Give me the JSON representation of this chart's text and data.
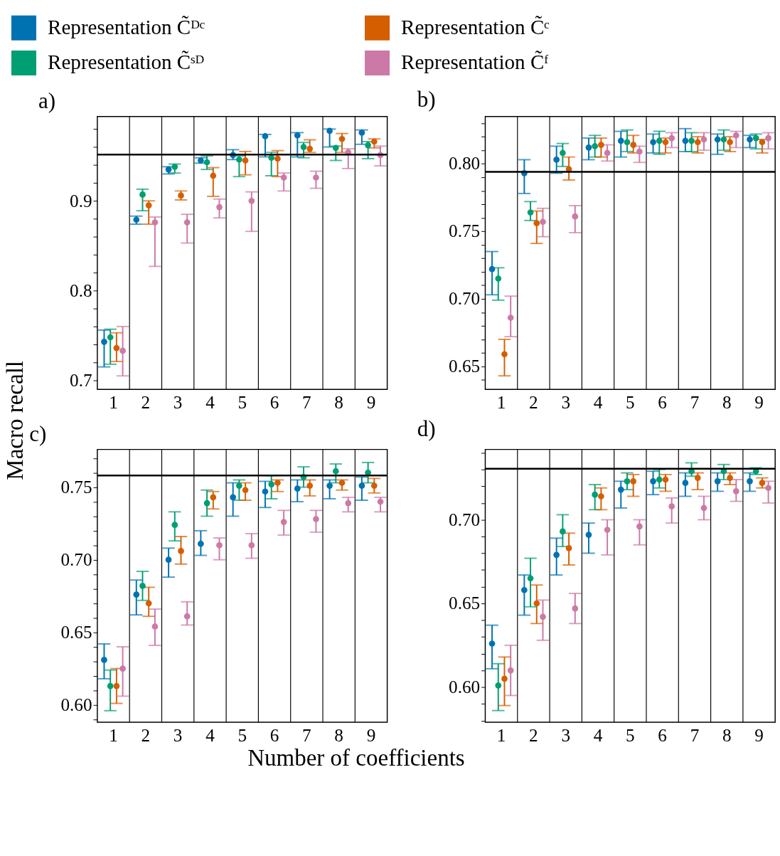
{
  "chart_data": [
    {
      "type": "scatter",
      "title": "a)",
      "categories": [
        "1",
        "2",
        "3",
        "4",
        "5",
        "6",
        "7",
        "8",
        "9"
      ],
      "ylabel": "Macro recall",
      "legend": "top",
      "grid": "x",
      "marker": "circle",
      "ylim": [
        0.69,
        0.994
      ],
      "yticks": [
        0.7,
        {
          "value": 0.72,
          "label": null
        },
        {
          "value": 0.74,
          "label": null
        },
        {
          "value": 0.76,
          "label": null
        },
        {
          "value": 0.78,
          "label": null
        },
        0.8,
        {
          "value": 0.82,
          "label": null
        },
        {
          "value": 0.84,
          "label": null
        },
        {
          "value": 0.86,
          "label": null
        },
        {
          "value": 0.88,
          "label": null
        },
        0.9,
        {
          "value": 0.92,
          "label": null
        },
        {
          "value": 0.94,
          "label": null
        },
        {
          "value": 0.96,
          "label": null
        },
        {
          "value": 0.98,
          "label": null
        }
      ],
      "ref_lines": [
        {
          "axis": "y",
          "value": 0.9516,
          "color": "#000000"
        }
      ],
      "series": [
        {
          "name": "Representation C̃ᴰᶜ",
          "color": "#0072b2",
          "values": [
            0.743,
            0.879,
            0.935,
            0.945,
            0.951,
            0.972,
            0.973,
            0.978,
            0.976
          ],
          "errors": [
            [
              0.715,
              0.756
            ],
            [
              0.874,
              0.883
            ],
            [
              0.93,
              0.938
            ],
            [
              0.942,
              0.948
            ],
            [
              0.946,
              0.957
            ],
            [
              0.949,
              0.974
            ],
            [
              0.949,
              0.976
            ],
            [
              0.96,
              0.98
            ],
            [
              0.963,
              0.979
            ]
          ]
        },
        {
          "name": "Representation C̃ˢᴰ",
          "color": "#009e73",
          "values": [
            0.748,
            0.907,
            0.938,
            0.943,
            0.946,
            0.948,
            0.96,
            0.959,
            0.962
          ],
          "errors": [
            [
              0.718,
              0.757
            ],
            [
              0.889,
              0.913
            ],
            [
              0.931,
              0.941
            ],
            [
              0.935,
              0.95
            ],
            [
              0.927,
              0.95
            ],
            [
              0.928,
              0.954
            ],
            [
              0.948,
              0.965
            ],
            [
              0.945,
              0.961
            ],
            [
              0.947,
              0.966
            ]
          ]
        },
        {
          "name": "Representation C̃ᶜ",
          "color": "#d55e00",
          "values": [
            0.736,
            0.895,
            0.906,
            0.928,
            0.945,
            0.947,
            0.958,
            0.969,
            0.966
          ],
          "errors": [
            [
              0.721,
              0.753
            ],
            [
              0.874,
              0.9
            ],
            [
              0.901,
              0.911
            ],
            [
              0.905,
              0.937
            ],
            [
              0.929,
              0.955
            ],
            [
              0.927,
              0.956
            ],
            [
              0.954,
              0.968
            ],
            [
              0.954,
              0.975
            ],
            [
              0.959,
              0.969
            ]
          ]
        },
        {
          "name": "Representation C̃ᶠ",
          "color": "#cc79a7",
          "values": [
            0.733,
            0.876,
            0.876,
            0.893,
            0.9,
            0.926,
            0.926,
            0.954,
            0.951
          ],
          "errors": [
            [
              0.705,
              0.76
            ],
            [
              0.827,
              0.882
            ],
            [
              0.853,
              0.885
            ],
            [
              0.881,
              0.902
            ],
            [
              0.866,
              0.91
            ],
            [
              0.911,
              0.931
            ],
            [
              0.914,
              0.933
            ],
            [
              0.936,
              0.958
            ],
            [
              0.939,
              0.961
            ]
          ]
        }
      ]
    },
    {
      "type": "scatter",
      "title": "b)",
      "categories": [
        "1",
        "2",
        "3",
        "4",
        "5",
        "6",
        "7",
        "8",
        "9"
      ],
      "grid": "x",
      "marker": "circle",
      "ylim": [
        0.633,
        0.835
      ],
      "yticks": [
        {
          "value": 0.64,
          "label": null
        },
        0.65,
        {
          "value": 0.66,
          "label": null
        },
        {
          "value": 0.67,
          "label": null
        },
        {
          "value": 0.68,
          "label": null
        },
        {
          "value": 0.69,
          "label": null
        },
        {
          "value": 0.7,
          "label": "0.70"
        },
        {
          "value": 0.71,
          "label": null
        },
        {
          "value": 0.72,
          "label": null
        },
        {
          "value": 0.73,
          "label": null
        },
        {
          "value": 0.74,
          "label": null
        },
        0.75,
        {
          "value": 0.76,
          "label": null
        },
        {
          "value": 0.77,
          "label": null
        },
        {
          "value": 0.78,
          "label": null
        },
        {
          "value": 0.79,
          "label": null
        },
        {
          "value": 0.8,
          "label": "0.80"
        },
        {
          "value": 0.81,
          "label": null
        },
        {
          "value": 0.82,
          "label": null
        },
        {
          "value": 0.83,
          "label": null
        }
      ],
      "ref_lines": [
        {
          "axis": "y",
          "value": 0.794,
          "color": "#000000"
        }
      ],
      "series": [
        {
          "color": "#0072b2",
          "values": [
            0.722,
            0.793,
            0.803,
            0.812,
            0.817,
            0.816,
            0.817,
            0.818,
            0.818
          ],
          "errors": [
            [
              0.703,
              0.735
            ],
            [
              0.778,
              0.803
            ],
            [
              0.793,
              0.813
            ],
            [
              0.803,
              0.819
            ],
            [
              0.805,
              0.824
            ],
            [
              0.808,
              0.822
            ],
            [
              0.809,
              0.826
            ],
            [
              0.807,
              0.822
            ],
            [
              0.812,
              0.821
            ]
          ]
        },
        {
          "color": "#009e73",
          "values": [
            0.715,
            0.764,
            0.808,
            0.813,
            0.816,
            0.817,
            0.817,
            0.818,
            0.819
          ],
          "errors": [
            [
              0.699,
              0.723
            ],
            [
              0.758,
              0.772
            ],
            [
              0.798,
              0.815
            ],
            [
              0.805,
              0.821
            ],
            [
              0.809,
              0.825
            ],
            [
              0.807,
              0.824
            ],
            [
              0.809,
              0.823
            ],
            [
              0.81,
              0.825
            ],
            [
              0.811,
              0.822
            ]
          ]
        },
        {
          "color": "#d55e00",
          "values": [
            0.659,
            0.756,
            0.796,
            0.814,
            0.814,
            0.816,
            0.816,
            0.816,
            0.816
          ],
          "errors": [
            [
              0.643,
              0.67
            ],
            [
              0.741,
              0.765
            ],
            [
              0.788,
              0.805
            ],
            [
              0.805,
              0.819
            ],
            [
              0.808,
              0.821
            ],
            [
              0.808,
              0.819
            ],
            [
              0.808,
              0.82
            ],
            [
              0.809,
              0.82
            ],
            [
              0.808,
              0.818
            ]
          ]
        },
        {
          "color": "#cc79a7",
          "values": [
            0.686,
            0.757,
            0.761,
            0.808,
            0.809,
            0.819,
            0.818,
            0.821,
            0.819
          ],
          "errors": [
            [
              0.672,
              0.702
            ],
            [
              0.746,
              0.767
            ],
            [
              0.749,
              0.769
            ],
            [
              0.802,
              0.814
            ],
            [
              0.801,
              0.813
            ],
            [
              0.812,
              0.823
            ],
            [
              0.81,
              0.823
            ],
            [
              0.812,
              0.824
            ],
            [
              0.811,
              0.823
            ]
          ]
        }
      ]
    },
    {
      "type": "scatter",
      "title": "c)",
      "categories": [
        "1",
        "2",
        "3",
        "4",
        "5",
        "6",
        "7",
        "8",
        "9"
      ],
      "xlabel": "Number of coefficients",
      "grid": "x",
      "marker": "circle",
      "ylim": [
        0.588,
        0.776
      ],
      "yticks": [
        {
          "value": 0.59,
          "label": null
        },
        {
          "value": 0.6,
          "label": "0.60"
        },
        {
          "value": 0.61,
          "label": null
        },
        {
          "value": 0.62,
          "label": null
        },
        {
          "value": 0.63,
          "label": null
        },
        {
          "value": 0.64,
          "label": null
        },
        0.65,
        {
          "value": 0.66,
          "label": null
        },
        {
          "value": 0.67,
          "label": null
        },
        {
          "value": 0.68,
          "label": null
        },
        {
          "value": 0.69,
          "label": null
        },
        {
          "value": 0.7,
          "label": "0.70"
        },
        {
          "value": 0.71,
          "label": null
        },
        {
          "value": 0.72,
          "label": null
        },
        {
          "value": 0.73,
          "label": null
        },
        {
          "value": 0.74,
          "label": null
        },
        0.75,
        {
          "value": 0.76,
          "label": null
        },
        {
          "value": 0.77,
          "label": null
        }
      ],
      "ref_lines": [
        {
          "axis": "y",
          "value": 0.758,
          "color": "#000000"
        }
      ],
      "series": [
        {
          "color": "#0072b2",
          "values": [
            0.631,
            0.676,
            0.7,
            0.711,
            0.743,
            0.747,
            0.749,
            0.751,
            0.751
          ],
          "errors": [
            [
              0.618,
              0.642
            ],
            [
              0.662,
              0.686
            ],
            [
              0.688,
              0.708
            ],
            [
              0.703,
              0.72
            ],
            [
              0.73,
              0.753
            ],
            [
              0.736,
              0.754
            ],
            [
              0.74,
              0.755
            ],
            [
              0.742,
              0.755
            ],
            [
              0.741,
              0.757
            ]
          ]
        },
        {
          "color": "#009e73",
          "values": [
            0.613,
            0.682,
            0.724,
            0.739,
            0.751,
            0.752,
            0.757,
            0.761,
            0.76
          ],
          "errors": [
            [
              0.596,
              0.624
            ],
            [
              0.672,
              0.692
            ],
            [
              0.713,
              0.733
            ],
            [
              0.73,
              0.748
            ],
            [
              0.741,
              0.755
            ],
            [
              0.742,
              0.758
            ],
            [
              0.75,
              0.764
            ],
            [
              0.753,
              0.766
            ],
            [
              0.753,
              0.767
            ]
          ]
        },
        {
          "color": "#d55e00",
          "values": [
            0.613,
            0.67,
            0.706,
            0.743,
            0.748,
            0.753,
            0.751,
            0.753,
            0.751
          ],
          "errors": [
            [
              0.601,
              0.625
            ],
            [
              0.661,
              0.681
            ],
            [
              0.697,
              0.716
            ],
            [
              0.735,
              0.747
            ],
            [
              0.741,
              0.753
            ],
            [
              0.747,
              0.755
            ],
            [
              0.744,
              0.755
            ],
            [
              0.748,
              0.755
            ],
            [
              0.746,
              0.756
            ]
          ]
        },
        {
          "color": "#cc79a7",
          "values": [
            0.625,
            0.654,
            0.661,
            0.71,
            0.71,
            0.726,
            0.728,
            0.739,
            0.74
          ],
          "errors": [
            [
              0.606,
              0.64
            ],
            [
              0.641,
              0.666
            ],
            [
              0.655,
              0.671
            ],
            [
              0.7,
              0.715
            ],
            [
              0.701,
              0.718
            ],
            [
              0.717,
              0.734
            ],
            [
              0.719,
              0.734
            ],
            [
              0.733,
              0.743
            ],
            [
              0.733,
              0.743
            ]
          ]
        }
      ]
    },
    {
      "type": "scatter",
      "title": "d)",
      "categories": [
        "1",
        "2",
        "3",
        "4",
        "5",
        "6",
        "7",
        "8",
        "9"
      ],
      "grid": "x",
      "marker": "circle",
      "ylim": [
        0.579,
        0.742
      ],
      "yticks": [
        {
          "value": 0.58,
          "label": null
        },
        {
          "value": 0.59,
          "label": null
        },
        {
          "value": 0.6,
          "label": "0.60"
        },
        {
          "value": 0.61,
          "label": null
        },
        {
          "value": 0.62,
          "label": null
        },
        {
          "value": 0.63,
          "label": null
        },
        {
          "value": 0.64,
          "label": null
        },
        0.65,
        {
          "value": 0.66,
          "label": null
        },
        {
          "value": 0.67,
          "label": null
        },
        {
          "value": 0.68,
          "label": null
        },
        {
          "value": 0.69,
          "label": null
        },
        {
          "value": 0.7,
          "label": "0.70"
        },
        {
          "value": 0.71,
          "label": null
        },
        {
          "value": 0.72,
          "label": null
        },
        {
          "value": 0.73,
          "label": null
        },
        {
          "value": 0.74,
          "label": null
        }
      ],
      "ref_lines": [
        {
          "axis": "y",
          "value": 0.7305,
          "color": "#000000"
        }
      ],
      "series": [
        {
          "color": "#0072b2",
          "values": [
            0.626,
            0.658,
            0.679,
            0.691,
            0.718,
            0.723,
            0.722,
            0.723,
            0.723
          ],
          "errors": [
            [
              0.611,
              0.637
            ],
            [
              0.643,
              0.667
            ],
            [
              0.667,
              0.689
            ],
            [
              0.68,
              0.698
            ],
            [
              0.707,
              0.723
            ],
            [
              0.715,
              0.729
            ],
            [
              0.714,
              0.728
            ],
            [
              0.717,
              0.728
            ],
            [
              0.717,
              0.728
            ]
          ]
        },
        {
          "color": "#009e73",
          "values": [
            0.601,
            0.665,
            0.693,
            0.715,
            0.723,
            0.724,
            0.729,
            0.729,
            0.729
          ],
          "errors": [
            [
              0.586,
              0.614
            ],
            [
              0.648,
              0.677
            ],
            [
              0.684,
              0.703
            ],
            [
              0.706,
              0.721
            ],
            [
              0.718,
              0.728
            ],
            [
              0.719,
              0.73
            ],
            [
              0.726,
              0.734
            ],
            [
              0.724,
              0.733
            ],
            [
              0.727,
              0.731
            ]
          ]
        },
        {
          "color": "#d55e00",
          "values": [
            0.605,
            0.65,
            0.683,
            0.714,
            0.723,
            0.724,
            0.725,
            0.725,
            0.722
          ],
          "errors": [
            [
              0.589,
              0.618
            ],
            [
              0.638,
              0.661
            ],
            [
              0.673,
              0.692
            ],
            [
              0.706,
              0.719
            ],
            [
              0.714,
              0.727
            ],
            [
              0.717,
              0.727
            ],
            [
              0.718,
              0.728
            ],
            [
              0.721,
              0.728
            ],
            [
              0.719,
              0.725
            ]
          ]
        },
        {
          "color": "#cc79a7",
          "values": [
            0.61,
            0.642,
            0.647,
            0.694,
            0.696,
            0.708,
            0.707,
            0.717,
            0.719
          ],
          "errors": [
            [
              0.595,
              0.625
            ],
            [
              0.628,
              0.652
            ],
            [
              0.638,
              0.656
            ],
            [
              0.679,
              0.7
            ],
            [
              0.685,
              0.7
            ],
            [
              0.698,
              0.713
            ],
            [
              0.7,
              0.714
            ],
            [
              0.711,
              0.724
            ],
            [
              0.71,
              0.723
            ]
          ]
        }
      ]
    }
  ]
}
